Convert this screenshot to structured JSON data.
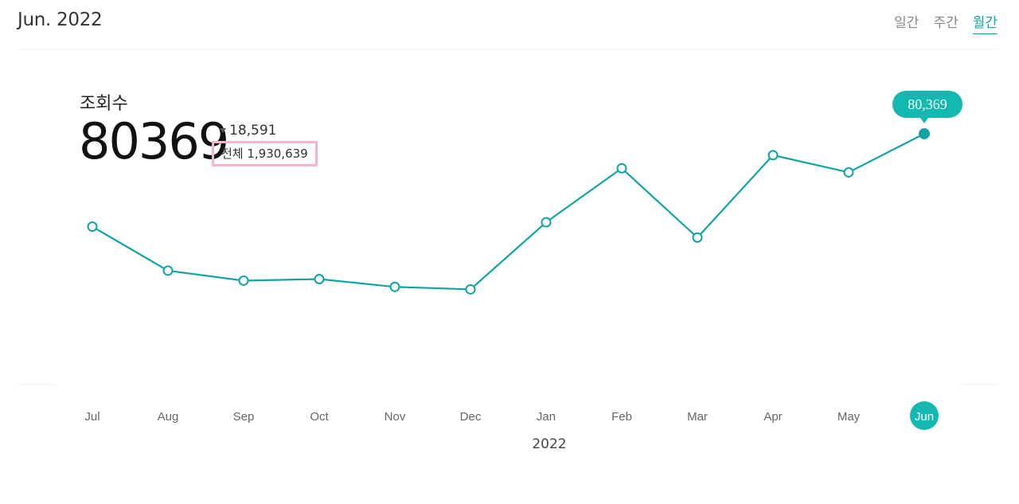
{
  "header": {
    "period_title": "Jun. 2022",
    "tabs": [
      {
        "label": "일간",
        "active": false
      },
      {
        "label": "주간",
        "active": false
      },
      {
        "label": "월간",
        "active": true
      }
    ]
  },
  "metric": {
    "label": "조회수",
    "value": "80369",
    "delta": "18,591",
    "delta_direction": "down",
    "total": "전체 1,930,639"
  },
  "colors": {
    "accent": "#0fa5a2",
    "tooltip_bg": "#13b8b0",
    "highlight_box": "#f4b6cb"
  },
  "chart_data": {
    "type": "line",
    "categories": [
      "Jul",
      "Aug",
      "Sep",
      "Oct",
      "Nov",
      "Dec",
      "Jan",
      "Feb",
      "Mar",
      "Apr",
      "May",
      "Jun"
    ],
    "values": [
      50600,
      36500,
      33300,
      33800,
      31300,
      30500,
      52000,
      69300,
      47100,
      73500,
      68000,
      80369
    ],
    "highlight_index": 11,
    "highlight_label": "80,369",
    "year_label": "2022",
    "ylim": [
      0,
      130000
    ],
    "grid": false
  }
}
